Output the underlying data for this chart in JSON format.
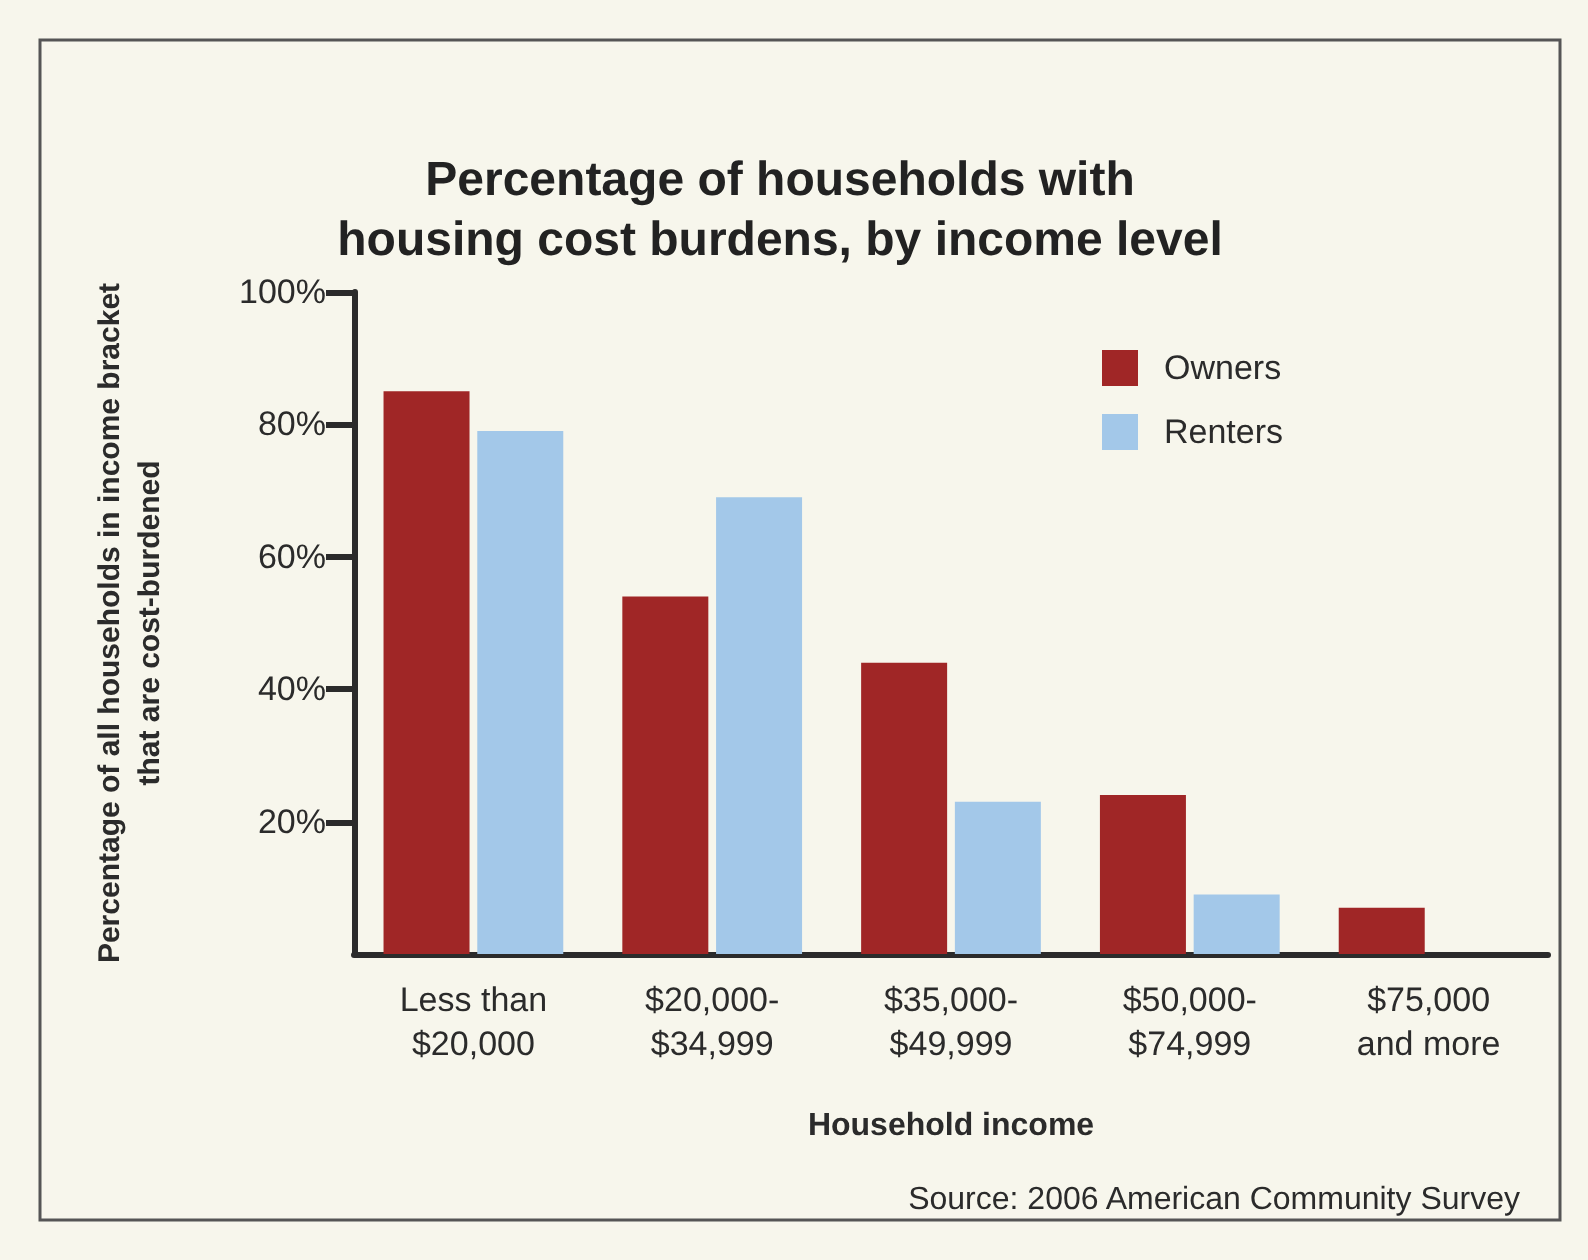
{
  "chart_data": {
    "type": "bar",
    "title": "Percentage of households with\nhousing cost burdens, by income level",
    "xlabel": "Household income",
    "ylabel": "Percentage of all households in income bracket\nthat are cost-burdened",
    "annotations": [
      "Source: 2006 American Community Survey"
    ],
    "categories": [
      "Less than\n$20,000",
      "$20,000-\n$34,999",
      "$35,000-\n$49,999",
      "$50,000-\n$74,999",
      "$75,000\nand more"
    ],
    "series": [
      {
        "name": "Owners",
        "color": "#a02626",
        "values": [
          85,
          54,
          44,
          24,
          7
        ]
      },
      {
        "name": "Renters",
        "color": "#a3c8e9",
        "values": [
          79,
          69,
          23,
          9,
          null
        ]
      }
    ],
    "ylim": [
      0,
      100
    ],
    "yticks": [
      {
        "value": 20,
        "label": "20%"
      },
      {
        "value": 40,
        "label": "40%"
      },
      {
        "value": 60,
        "label": "60%"
      },
      {
        "value": 80,
        "label": "80%"
      },
      {
        "value": 100,
        "label": "100%"
      }
    ],
    "grid": false,
    "legend": "top right"
  }
}
